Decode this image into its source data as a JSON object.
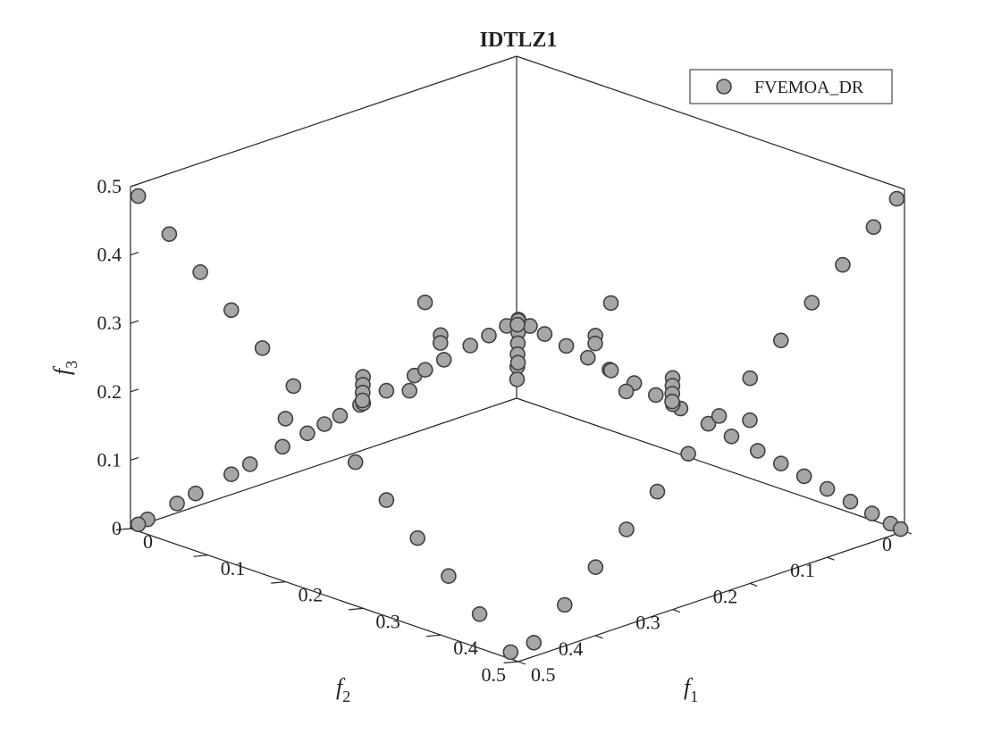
{
  "chart_data": {
    "type": "scatter",
    "projection": "3d",
    "title": "IDTLZ1",
    "xlabel": "f",
    "xlabel_sub": "1",
    "ylabel": "f",
    "ylabel_sub": "2",
    "zlabel": "f",
    "zlabel_sub": "3",
    "xlim": [
      0,
      0.5
    ],
    "ylim": [
      0,
      0.5
    ],
    "zlim": [
      0,
      0.5
    ],
    "x_ticks": [
      "0",
      "0.1",
      "0.2",
      "0.3",
      "0.4",
      "0.5"
    ],
    "y_ticks": [
      "0",
      "0.1",
      "0.2",
      "0.3",
      "0.4",
      "0.5"
    ],
    "z_ticks": [
      "0",
      "0.1",
      "0.2",
      "0.3",
      "0.4",
      "0.5"
    ],
    "grid": false,
    "legend_position": "top-right",
    "marker_color": "#a6a6a6",
    "marker_edge_color": "#404040",
    "series": [
      {
        "name": "FVEMOA_DR",
        "points": [
          [
            0.5,
            0.5,
            0.5
          ],
          [
            0.485,
            0.5,
            0.485
          ],
          [
            0.462,
            0.5,
            0.462
          ],
          [
            0.438,
            0.5,
            0.438
          ],
          [
            0.404,
            0.5,
            0.404
          ],
          [
            0.366,
            0.5,
            0.366
          ],
          [
            0.33,
            0.5,
            0.33
          ],
          [
            0.296,
            0.5,
            0.296
          ],
          [
            0.27,
            0.5,
            0.27
          ],
          [
            0.228,
            0.5,
            0.228
          ],
          [
            0.196,
            0.5,
            0.196
          ],
          [
            0.154,
            0.5,
            0.154
          ],
          [
            0.13,
            0.5,
            0.13
          ],
          [
            0.084,
            0.5,
            0.084
          ],
          [
            0.06,
            0.5,
            0.06
          ],
          [
            0.022,
            0.5,
            0.022
          ],
          [
            0.01,
            0.5,
            0.01
          ],
          [
            0.5,
            0.5,
            0.5
          ],
          [
            0.5,
            0.485,
            0.485
          ],
          [
            0.5,
            0.466,
            0.466
          ],
          [
            0.5,
            0.438,
            0.438
          ],
          [
            0.5,
            0.41,
            0.41
          ],
          [
            0.5,
            0.382,
            0.382
          ],
          [
            0.5,
            0.35,
            0.35
          ],
          [
            0.5,
            0.322,
            0.322
          ],
          [
            0.5,
            0.29,
            0.29
          ],
          [
            0.5,
            0.254,
            0.254
          ],
          [
            0.5,
            0.224,
            0.224
          ],
          [
            0.5,
            0.19,
            0.19
          ],
          [
            0.5,
            0.16,
            0.16
          ],
          [
            0.5,
            0.13,
            0.13
          ],
          [
            0.5,
            0.1,
            0.1
          ],
          [
            0.5,
            0.07,
            0.07
          ],
          [
            0.5,
            0.042,
            0.042
          ],
          [
            0.5,
            0.018,
            0.018
          ],
          [
            0.5,
            0.005,
            0.005
          ],
          [
            0.5,
            0.01,
            0.49
          ],
          [
            0.5,
            0.04,
            0.46
          ],
          [
            0.5,
            0.08,
            0.42
          ],
          [
            0.5,
            0.12,
            0.38
          ],
          [
            0.5,
            0.16,
            0.34
          ],
          [
            0.5,
            0.2,
            0.3
          ],
          [
            0.5,
            0.24,
            0.26
          ],
          [
            0.5,
            0.28,
            0.22
          ],
          [
            0.5,
            0.32,
            0.18
          ],
          [
            0.5,
            0.36,
            0.14
          ],
          [
            0.5,
            0.4,
            0.1
          ],
          [
            0.5,
            0.44,
            0.06
          ],
          [
            0.5,
            0.48,
            0.02
          ],
          [
            0.01,
            0.5,
            0.49
          ],
          [
            0.05,
            0.5,
            0.45
          ],
          [
            0.09,
            0.5,
            0.41
          ],
          [
            0.13,
            0.5,
            0.37
          ],
          [
            0.17,
            0.5,
            0.33
          ],
          [
            0.21,
            0.5,
            0.29
          ],
          [
            0.25,
            0.5,
            0.25
          ],
          [
            0.29,
            0.5,
            0.21
          ],
          [
            0.33,
            0.5,
            0.17
          ],
          [
            0.37,
            0.5,
            0.13
          ],
          [
            0.41,
            0.5,
            0.09
          ],
          [
            0.45,
            0.5,
            0.05
          ],
          [
            0.49,
            0.5,
            0.01
          ],
          [
            0.42,
            0.42,
            0.42
          ],
          [
            0.35,
            0.35,
            0.35
          ],
          [
            0.28,
            0.28,
            0.28
          ],
          [
            0.2,
            0.2,
            0.2
          ],
          [
            0.12,
            0.12,
            0.12
          ],
          [
            0.38,
            0.5,
            0.38
          ],
          [
            0.5,
            0.38,
            0.38
          ],
          [
            0.3,
            0.5,
            0.3
          ],
          [
            0.5,
            0.3,
            0.3
          ],
          [
            0.45,
            0.35,
            0.4
          ],
          [
            0.35,
            0.45,
            0.4
          ],
          [
            0.4,
            0.3,
            0.35
          ],
          [
            0.3,
            0.4,
            0.35
          ],
          [
            0.45,
            0.25,
            0.3
          ],
          [
            0.25,
            0.45,
            0.3
          ],
          [
            0.4,
            0.2,
            0.25
          ],
          [
            0.2,
            0.4,
            0.25
          ],
          [
            0.35,
            0.15,
            0.2
          ],
          [
            0.15,
            0.35,
            0.2
          ],
          [
            0.3,
            0.1,
            0.15
          ],
          [
            0.1,
            0.3,
            0.15
          ],
          [
            0.45,
            0.15,
            0.2
          ],
          [
            0.15,
            0.45,
            0.2
          ],
          [
            0.45,
            0.45,
            0.46
          ],
          [
            0.25,
            0.25,
            0.3
          ],
          [
            0.4,
            0.4,
            0.36
          ],
          [
            0.33,
            0.45,
            0.44
          ],
          [
            0.45,
            0.33,
            0.44
          ],
          [
            0.42,
            0.28,
            0.28
          ],
          [
            0.28,
            0.42,
            0.28
          ]
        ]
      }
    ]
  }
}
